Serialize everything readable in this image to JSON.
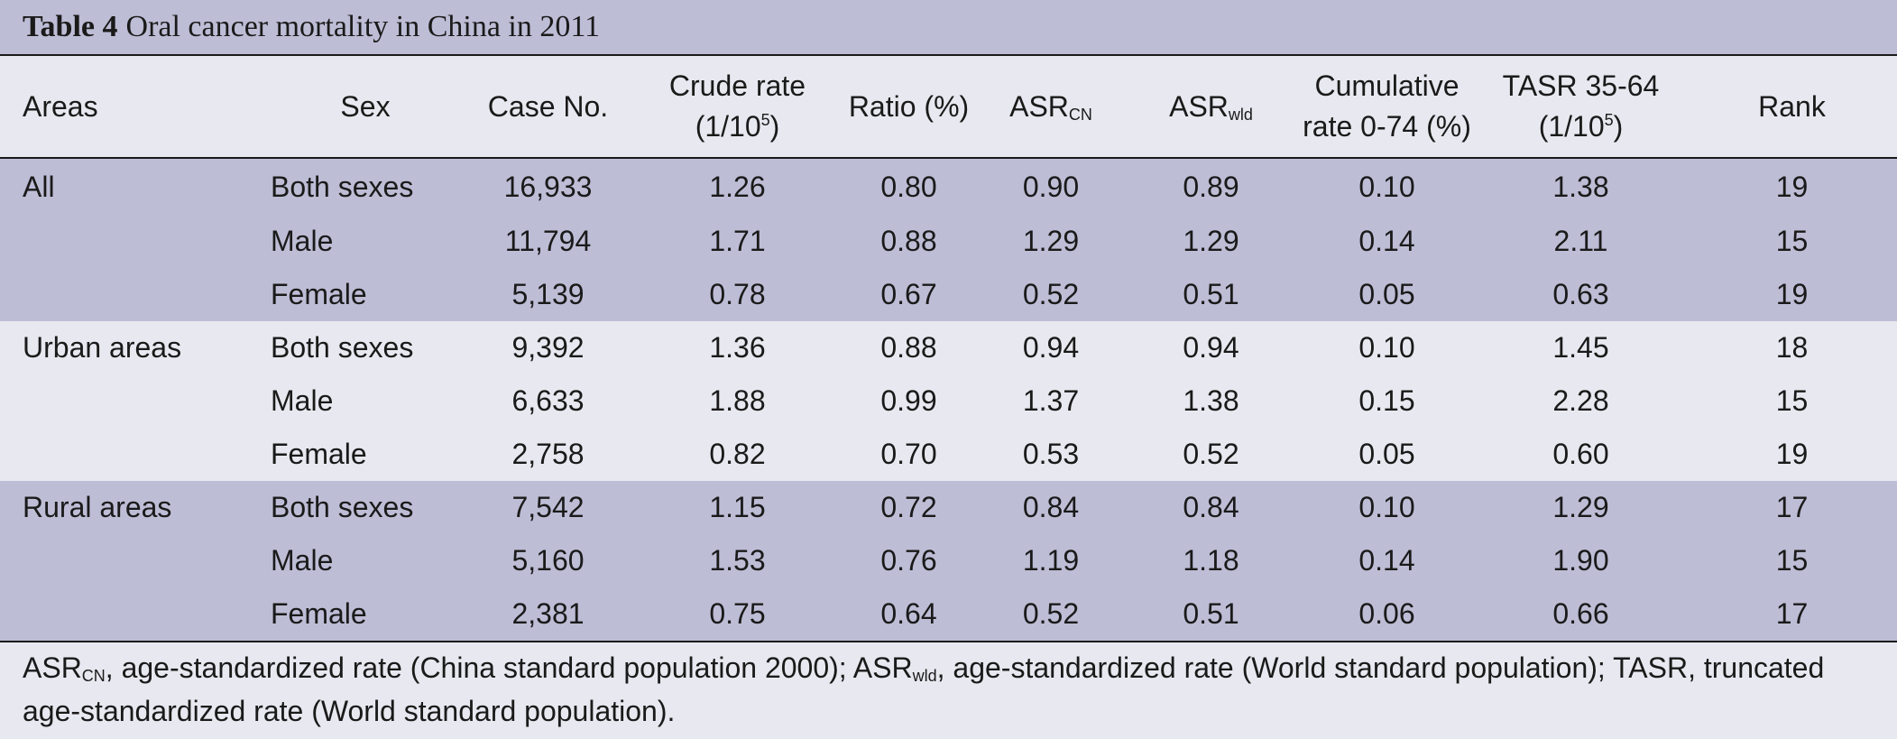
{
  "title": {
    "label": "Table 4",
    "text": "Oral cancer mortality in China in 2011"
  },
  "header": {
    "areas": "Areas",
    "sex": "Sex",
    "case_no": "Case No.",
    "crude_rate": "Crude rate",
    "crude_rate_unit_pre": "(1/10",
    "crude_rate_unit_sup": "5",
    "crude_rate_unit_post": ")",
    "ratio": "Ratio (%)",
    "asr_cn_base": "ASR",
    "asr_cn_sub": "CN",
    "asr_wld_base": "ASR",
    "asr_wld_sub": "wld",
    "cumulative": "Cumulative",
    "cumulative_2": "rate 0-74 (%)",
    "tasr": "TASR 35-64",
    "tasr_unit_pre": "(1/10",
    "tasr_unit_sup": "5",
    "tasr_unit_post": ")",
    "rank": "Rank"
  },
  "rows": [
    {
      "area": "All",
      "sex": "Both sexes",
      "case_no": "16,933",
      "crude": "1.26",
      "ratio": "0.80",
      "asr_cn": "0.90",
      "asr_wld": "0.89",
      "cum": "0.10",
      "tasr": "1.38",
      "rank": "19"
    },
    {
      "area": "",
      "sex": "Male",
      "case_no": "11,794",
      "crude": "1.71",
      "ratio": "0.88",
      "asr_cn": "1.29",
      "asr_wld": "1.29",
      "cum": "0.14",
      "tasr": "2.11",
      "rank": "15"
    },
    {
      "area": "",
      "sex": "Female",
      "case_no": "5,139",
      "crude": "0.78",
      "ratio": "0.67",
      "asr_cn": "0.52",
      "asr_wld": "0.51",
      "cum": "0.05",
      "tasr": "0.63",
      "rank": "19"
    },
    {
      "area": "Urban areas",
      "sex": "Both sexes",
      "case_no": "9,392",
      "crude": "1.36",
      "ratio": "0.88",
      "asr_cn": "0.94",
      "asr_wld": "0.94",
      "cum": "0.10",
      "tasr": "1.45",
      "rank": "18"
    },
    {
      "area": "",
      "sex": "Male",
      "case_no": "6,633",
      "crude": "1.88",
      "ratio": "0.99",
      "asr_cn": "1.37",
      "asr_wld": "1.38",
      "cum": "0.15",
      "tasr": "2.28",
      "rank": "15"
    },
    {
      "area": "",
      "sex": "Female",
      "case_no": "2,758",
      "crude": "0.82",
      "ratio": "0.70",
      "asr_cn": "0.53",
      "asr_wld": "0.52",
      "cum": "0.05",
      "tasr": "0.60",
      "rank": "19"
    },
    {
      "area": "Rural areas",
      "sex": "Both sexes",
      "case_no": "7,542",
      "crude": "1.15",
      "ratio": "0.72",
      "asr_cn": "0.84",
      "asr_wld": "0.84",
      "cum": "0.10",
      "tasr": "1.29",
      "rank": "17"
    },
    {
      "area": "",
      "sex": "Male",
      "case_no": "5,160",
      "crude": "1.53",
      "ratio": "0.76",
      "asr_cn": "1.19",
      "asr_wld": "1.18",
      "cum": "0.14",
      "tasr": "1.90",
      "rank": "15"
    },
    {
      "area": "",
      "sex": "Female",
      "case_no": "2,381",
      "crude": "0.75",
      "ratio": "0.64",
      "asr_cn": "0.52",
      "asr_wld": "0.51",
      "cum": "0.06",
      "tasr": "0.66",
      "rank": "17"
    }
  ],
  "footnote": {
    "asr_base_1": "ASR",
    "asr_sub_1": "CN",
    "text_1": ", age-standardized rate (China standard population 2000); ",
    "asr_base_2": "ASR",
    "asr_sub_2": "wld",
    "text_2": ", age-standardized rate (World standard population); TASR, truncated age-standardized rate (World standard population)."
  },
  "colors": {
    "band": "#bdbdd6",
    "background": "#e8e8f0",
    "rule": "#1a1a1a"
  }
}
